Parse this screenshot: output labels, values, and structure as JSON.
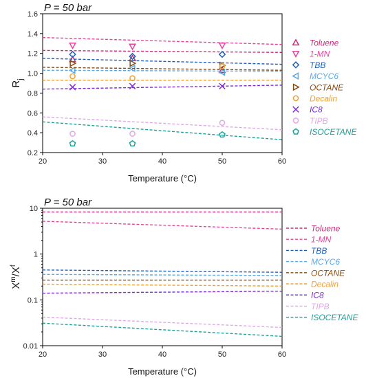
{
  "chart_data": [
    {
      "type": "scatter",
      "title": "P = 50 bar",
      "xlabel": "Temperature (°C)",
      "ylabel": "R",
      "ylabel_sub": "j",
      "xlim": [
        20,
        60
      ],
      "ylim": [
        0.2,
        1.6
      ],
      "xticks": [
        20,
        30,
        40,
        50,
        60
      ],
      "yticks": [
        0.2,
        0.4,
        0.6,
        0.8,
        1.0,
        1.2,
        1.4,
        1.6
      ],
      "x": [
        25,
        35,
        50
      ],
      "series": [
        {
          "name": "Toluene",
          "color": "#cc2a7a",
          "marker": "triangle-up",
          "points": [
            1.14,
            1.15,
            1.03
          ],
          "line": [
            1.23,
            1.21
          ]
        },
        {
          "name": "1-MN",
          "color": "#e8439a",
          "marker": "triangle-down",
          "points": [
            1.28,
            1.27,
            1.28
          ],
          "line": [
            1.36,
            1.29
          ]
        },
        {
          "name": "TBB",
          "color": "#1f5fc0",
          "marker": "diamond",
          "points": [
            1.19,
            1.17,
            1.19
          ],
          "line": [
            1.15,
            1.09
          ]
        },
        {
          "name": "MCYC6",
          "color": "#5aa9e8",
          "marker": "triangle-left",
          "points": [
            1.03,
            1.05,
            1.01
          ],
          "line": [
            1.03,
            1.02
          ]
        },
        {
          "name": "OCTANE",
          "color": "#8a4a10",
          "marker": "triangle-right",
          "points": [
            1.1,
            1.1,
            1.08
          ],
          "line": [
            1.06,
            1.03
          ]
        },
        {
          "name": "Decalin",
          "color": "#f0a030",
          "marker": "circle",
          "points": [
            0.97,
            0.95,
            1.07
          ],
          "line": [
            0.93,
            0.93
          ]
        },
        {
          "name": "IC8",
          "color": "#7d2ae0",
          "marker": "x",
          "points": [
            0.86,
            0.87,
            0.87
          ],
          "line": [
            0.84,
            0.88
          ]
        },
        {
          "name": "TIPB",
          "color": "#e0a8e8",
          "marker": "circle",
          "points": [
            0.39,
            0.39,
            0.5
          ],
          "line": [
            0.56,
            0.43
          ]
        },
        {
          "name": "ISOCETANE",
          "color": "#1aa39a",
          "marker": "pentagon",
          "points": [
            0.29,
            0.29,
            0.38
          ],
          "line": [
            0.51,
            0.33
          ]
        }
      ]
    },
    {
      "type": "line",
      "title": "P = 50 bar",
      "xlabel": "Temperature (°C)",
      "ylabel": "X",
      "ylabel_sup1": "m",
      "ylabel_mid": "/X",
      "ylabel_sup2": "f",
      "scale": "log",
      "xlim": [
        20,
        60
      ],
      "ylim": [
        0.01,
        10
      ],
      "xticks": [
        20,
        30,
        40,
        50,
        60
      ],
      "yticks": [
        0.01,
        0.1,
        1,
        10
      ],
      "ytick_labels": [
        "0.01",
        "0.1",
        "1",
        "10"
      ],
      "series": [
        {
          "name": "Toluene",
          "color": "#cc2a7a",
          "line": [
            8.3,
            8.3
          ]
        },
        {
          "name": "1-MN",
          "color": "#e8439a",
          "line": [
            5.2,
            3.5
          ]
        },
        {
          "name": "TBB",
          "color": "#1f5fc0",
          "line": [
            0.45,
            0.4
          ]
        },
        {
          "name": "MCYC6",
          "color": "#5aa9e8",
          "line": [
            0.36,
            0.34
          ]
        },
        {
          "name": "OCTANE",
          "color": "#8a4a10",
          "line": [
            0.27,
            0.27
          ]
        },
        {
          "name": "Decalin",
          "color": "#f0a030",
          "line": [
            0.22,
            0.2
          ]
        },
        {
          "name": "IC8",
          "color": "#7d2ae0",
          "line": [
            0.14,
            0.155
          ]
        },
        {
          "name": "TIPB",
          "color": "#e0a8e8",
          "line": [
            0.042,
            0.025
          ]
        },
        {
          "name": "ISOCETANE",
          "color": "#1aa39a",
          "line": [
            0.031,
            0.016
          ]
        }
      ]
    }
  ]
}
